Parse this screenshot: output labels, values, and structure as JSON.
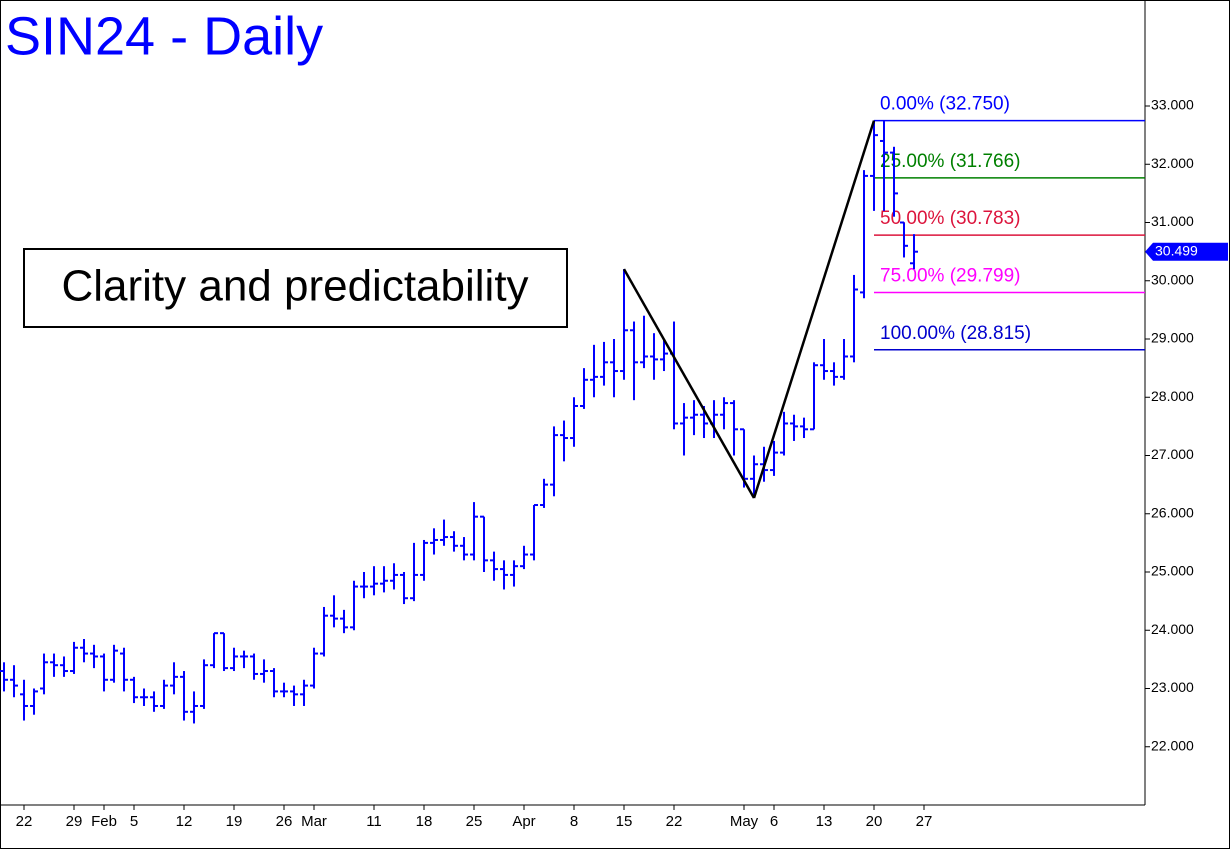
{
  "chart_data": {
    "type": "ohlc",
    "title": "SIN24 - Daily",
    "annotation": "Clarity and predictability",
    "color": "#0000ff",
    "categories": [
      null,
      null,
      "22",
      null,
      null,
      null,
      null,
      "29",
      null,
      null,
      "Feb",
      null,
      null,
      "5",
      null,
      null,
      null,
      null,
      "12",
      null,
      null,
      null,
      null,
      "19",
      null,
      null,
      null,
      null,
      "26",
      null,
      null,
      "Mar",
      null,
      null,
      null,
      null,
      null,
      "11",
      null,
      null,
      null,
      null,
      "18",
      null,
      null,
      null,
      null,
      "25",
      null,
      null,
      null,
      null,
      "Apr",
      null,
      null,
      null,
      null,
      "8",
      null,
      null,
      null,
      null,
      "15",
      null,
      null,
      null,
      null,
      "22",
      null,
      null,
      null,
      null,
      null,
      null,
      "May",
      null,
      null,
      "6",
      null,
      null,
      null,
      null,
      "13",
      null,
      null,
      null,
      null,
      "20",
      null,
      null,
      null,
      null,
      "27"
    ],
    "open": [
      23.3,
      23.15,
      22.9,
      22.7,
      23.0,
      23.45,
      23.4,
      23.3,
      23.7,
      23.6,
      23.55,
      23.15,
      23.6,
      23.15,
      22.85,
      22.85,
      22.7,
      23.05,
      23.2,
      22.6,
      22.7,
      23.4,
      23.95,
      23.35,
      23.55,
      23.55,
      23.25,
      23.3,
      22.95,
      22.95,
      22.9,
      23.05,
      23.6,
      24.25,
      24.2,
      24.05,
      24.75,
      24.75,
      24.8,
      24.85,
      24.95,
      24.55,
      24.95,
      25.5,
      25.55,
      25.6,
      25.45,
      25.3,
      25.95,
      25.2,
      25.05,
      24.95,
      25.1,
      25.3,
      26.15,
      26.5,
      27.35,
      27.3,
      27.85,
      28.3,
      28.35,
      28.6,
      28.45,
      29.15,
      28.6,
      28.7,
      28.65,
      28.75,
      27.55,
      27.65,
      27.7,
      27.55,
      27.7,
      27.9,
      27.45,
      26.6,
      26.85,
      26.75,
      27.05,
      27.55,
      27.5,
      27.45,
      28.55,
      28.45,
      28.35,
      28.7,
      29.8,
      31.8,
      32.4,
      32.2,
      31.0,
      30.3,
      null
    ],
    "high": [
      23.45,
      23.4,
      23.15,
      23.0,
      23.6,
      23.6,
      23.55,
      23.8,
      23.85,
      23.75,
      23.6,
      23.75,
      23.7,
      23.2,
      23.0,
      22.95,
      23.15,
      23.45,
      23.3,
      22.95,
      23.5,
      23.95,
      23.95,
      23.7,
      23.65,
      23.6,
      23.5,
      23.35,
      23.1,
      23.05,
      23.15,
      23.7,
      24.4,
      24.6,
      24.35,
      24.85,
      25.0,
      25.1,
      25.1,
      25.15,
      25.0,
      25.5,
      25.55,
      25.75,
      25.9,
      25.7,
      25.6,
      26.2,
      25.95,
      25.35,
      25.2,
      25.2,
      25.45,
      26.15,
      26.6,
      27.5,
      27.6,
      28.0,
      28.5,
      28.9,
      28.95,
      29.0,
      30.2,
      29.3,
      29.4,
      29.1,
      29.0,
      29.3,
      27.9,
      27.95,
      27.85,
      27.95,
      28.0,
      27.95,
      27.45,
      27.0,
      27.15,
      27.25,
      27.75,
      27.7,
      27.65,
      28.6,
      29.0,
      28.6,
      29.0,
      30.1,
      31.9,
      32.75,
      32.75,
      32.3,
      31.0,
      30.8,
      null
    ],
    "low": [
      22.95,
      22.85,
      22.45,
      22.55,
      22.9,
      23.2,
      23.2,
      23.25,
      23.45,
      23.35,
      22.95,
      23.1,
      22.95,
      22.75,
      22.7,
      22.6,
      22.65,
      22.9,
      22.45,
      22.4,
      22.65,
      23.35,
      23.3,
      23.3,
      23.35,
      23.15,
      23.1,
      22.85,
      22.85,
      22.7,
      22.7,
      23.0,
      23.55,
      24.05,
      23.95,
      24.0,
      24.55,
      24.6,
      24.65,
      24.7,
      24.45,
      24.5,
      24.85,
      25.3,
      25.45,
      25.35,
      25.2,
      25.2,
      25.0,
      24.85,
      24.7,
      24.75,
      25.05,
      25.2,
      26.1,
      26.3,
      26.9,
      27.15,
      27.8,
      28.0,
      28.2,
      28.0,
      28.3,
      27.95,
      28.5,
      28.3,
      28.45,
      27.45,
      27.0,
      27.35,
      27.3,
      27.3,
      27.45,
      27.0,
      26.45,
      26.3,
      26.55,
      26.65,
      27.0,
      27.25,
      27.3,
      27.45,
      28.3,
      28.2,
      28.3,
      28.6,
      29.7,
      31.2,
      31.2,
      31.1,
      30.4,
      30.2,
      null
    ],
    "close": [
      23.15,
      23.05,
      22.7,
      22.95,
      23.45,
      23.4,
      23.3,
      23.7,
      23.6,
      23.55,
      23.15,
      23.65,
      23.15,
      22.85,
      22.85,
      22.7,
      23.05,
      23.2,
      22.6,
      22.7,
      23.4,
      23.95,
      23.35,
      23.55,
      23.55,
      23.25,
      23.3,
      22.95,
      22.95,
      22.9,
      23.05,
      23.6,
      24.25,
      24.2,
      24.05,
      24.75,
      24.75,
      24.8,
      24.85,
      24.95,
      24.55,
      24.95,
      25.5,
      25.55,
      25.6,
      25.45,
      25.3,
      25.95,
      25.2,
      25.05,
      24.95,
      25.1,
      25.3,
      26.15,
      26.5,
      27.35,
      27.3,
      27.85,
      28.3,
      28.35,
      28.6,
      28.45,
      29.15,
      28.6,
      28.7,
      28.65,
      28.75,
      27.55,
      27.65,
      27.7,
      27.55,
      27.7,
      27.9,
      27.45,
      26.6,
      26.85,
      26.75,
      27.05,
      27.55,
      27.5,
      27.45,
      28.55,
      28.45,
      28.35,
      28.7,
      29.85,
      31.8,
      32.5,
      32.2,
      31.5,
      30.6,
      30.499,
      null
    ],
    "last_price_label": "30.499",
    "pattern": [
      null,
      null,
      null,
      null,
      null,
      null,
      null,
      null,
      null,
      null,
      null,
      null,
      null,
      null,
      null,
      null,
      null,
      null,
      null,
      null,
      null,
      null,
      null,
      null,
      null,
      null,
      null,
      null,
      null,
      null,
      null,
      null,
      null,
      null,
      null,
      null,
      null,
      null,
      null,
      null,
      null,
      null,
      null,
      null,
      null,
      null,
      null,
      null,
      null,
      null,
      null,
      null,
      null,
      null,
      null,
      null,
      null,
      null,
      null,
      null,
      null,
      null,
      30.2,
      null,
      null,
      null,
      null,
      null,
      null,
      null,
      null,
      null,
      null,
      null,
      null,
      26.27,
      null,
      null,
      null,
      null,
      null,
      null,
      null,
      null,
      null,
      null,
      null,
      32.75,
      null,
      null,
      null,
      null,
      null
    ],
    "fib_levels": [
      {
        "label": "0.00% (32.750)",
        "value": 32.75,
        "color": "#0000ff"
      },
      {
        "label": "25.00% (31.766)",
        "value": 31.766,
        "color": "#008000"
      },
      {
        "label": "50.00% (30.783)",
        "value": 30.783,
        "color": "#dc143c"
      },
      {
        "label": "75.00% (29.799)",
        "value": 29.799,
        "color": "#ff00ff"
      },
      {
        "label": "100.00% (28.815)",
        "value": 28.815,
        "color": "#0000cd"
      }
    ],
    "ylim": [
      21.0,
      34.82
    ],
    "yticks": [
      {
        "value": 22,
        "label": "22.000"
      },
      {
        "value": 23,
        "label": "23.000"
      },
      {
        "value": 24,
        "label": "24.000"
      },
      {
        "value": 25,
        "label": "25.000"
      },
      {
        "value": 26,
        "label": "26.000"
      },
      {
        "value": 27,
        "label": "27.000"
      },
      {
        "value": 28,
        "label": "28.000"
      },
      {
        "value": 29,
        "label": "29.000"
      },
      {
        "value": 30,
        "label": "30.000"
      },
      {
        "value": 31,
        "label": "31.000"
      },
      {
        "value": 32,
        "label": "32.000"
      },
      {
        "value": 33,
        "label": "33.000"
      }
    ]
  }
}
